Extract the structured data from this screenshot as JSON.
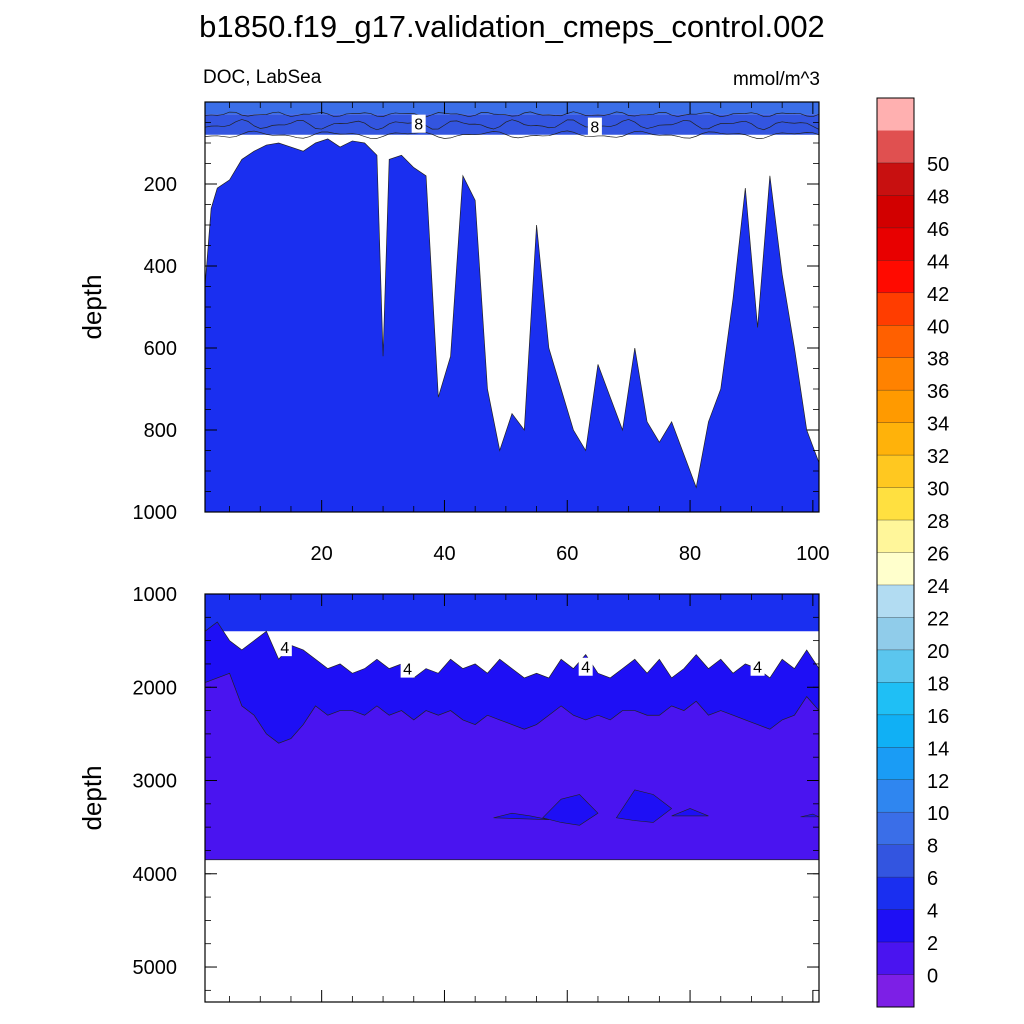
{
  "title": "b1850.f19_g17.validation_cmeps_control.002",
  "colors": {
    "levels": [
      "#7d1fe6",
      "#4a14f0",
      "#1e0ff5",
      "#1a2ff0",
      "#3355e0",
      "#3a6ee8",
      "#2f86f0",
      "#1a9cf5",
      "#10b0f5",
      "#1fbff5",
      "#5bc6ee",
      "#90ccea",
      "#b2dcf2",
      "#ffffcc",
      "#fff69a",
      "#ffe040",
      "#ffc820",
      "#ffb20a",
      "#ff9a00",
      "#ff8200",
      "#ff6000",
      "#ff3d00",
      "#ff0a00",
      "#e80000",
      "#d20000",
      "#c81010",
      "#e05050",
      "#ffb0b0"
    ]
  },
  "chart_data": [
    {
      "type": "contour",
      "panel": "top",
      "left_label": "DOC, LabSea",
      "right_label": "mmol/m^3",
      "ylabel": "depth",
      "x_ticks": [
        20,
        40,
        60,
        80,
        100
      ],
      "xlim": [
        1,
        101
      ],
      "y_ticks": [
        200,
        400,
        600,
        800,
        1000
      ],
      "ylim": [
        0,
        1000
      ],
      "y_inverted": true,
      "contour_labels": [
        {
          "text": "8",
          "x": 35.8,
          "y": 53
        },
        {
          "text": "8",
          "x": 64.5,
          "y": 60
        }
      ],
      "regions": [
        {
          "name": "surface",
          "level": "8-10",
          "x": [
            1,
            101
          ],
          "top": [
            0,
            0
          ],
          "bottom": [
            30,
            30
          ]
        },
        {
          "name": "upper",
          "level": "6-8",
          "x": [
            1,
            101
          ],
          "top": [
            30,
            30
          ],
          "bottom": [
            80,
            80
          ]
        },
        {
          "name": "interior",
          "level": "4-6",
          "x": [
            1,
            2,
            3,
            5,
            7,
            9,
            11,
            13,
            15,
            17,
            19,
            21,
            23,
            25,
            27,
            29,
            30,
            31,
            33,
            35,
            37,
            39,
            41,
            43,
            45,
            47,
            49,
            51,
            53,
            55,
            57,
            59,
            61,
            63,
            65,
            67,
            69,
            71,
            73,
            75,
            77,
            79,
            81,
            83,
            85,
            87,
            89,
            91,
            93,
            95,
            97,
            99,
            101
          ],
          "boundary": [
            450,
            260,
            210,
            190,
            140,
            120,
            105,
            100,
            110,
            120,
            100,
            90,
            110,
            95,
            100,
            130,
            620,
            140,
            130,
            160,
            180,
            720,
            620,
            180,
            240,
            700,
            850,
            760,
            800,
            300,
            600,
            700,
            800,
            850,
            640,
            720,
            800,
            600,
            780,
            830,
            780,
            860,
            940,
            780,
            700,
            480,
            210,
            550,
            180,
            420,
            600,
            800,
            880
          ]
        }
      ]
    },
    {
      "type": "contour",
      "panel": "bottom",
      "ylabel": "depth",
      "x_ticks": [
        20,
        40,
        60,
        80,
        100
      ],
      "xlim": [
        1,
        101
      ],
      "y_ticks": [
        1000,
        2000,
        3000,
        4000,
        5000
      ],
      "ylim": [
        1000,
        5375
      ],
      "y_inverted": true,
      "data_bottom_depth": 3850,
      "contour_labels": [
        {
          "text": "4",
          "x": 14,
          "y": 1570
        },
        {
          "text": "4",
          "x": 34,
          "y": 1800
        },
        {
          "text": "4",
          "x": 63,
          "y": 1780
        },
        {
          "text": "4",
          "x": 91,
          "y": 1780
        }
      ],
      "regions": [
        {
          "name": "upper",
          "level": "4-6",
          "x": [
            1,
            101
          ],
          "top": [
            1000,
            1000
          ],
          "bottom": [
            1400,
            1400
          ]
        },
        {
          "name": "mid",
          "level": "2-4",
          "x": [
            1,
            3,
            5,
            7,
            9,
            11,
            13,
            15,
            17,
            19,
            21,
            23,
            25,
            27,
            29,
            31,
            33,
            35,
            37,
            39,
            41,
            43,
            45,
            47,
            49,
            51,
            53,
            55,
            57,
            59,
            61,
            63,
            65,
            67,
            69,
            71,
            73,
            75,
            77,
            79,
            81,
            83,
            85,
            87,
            89,
            91,
            93,
            95,
            97,
            99,
            101
          ],
          "boundary": [
            1400,
            1300,
            1500,
            1600,
            1500,
            1400,
            1700,
            1550,
            1600,
            1700,
            1800,
            1750,
            1850,
            1800,
            1700,
            1800,
            1750,
            1900,
            1800,
            1850,
            1700,
            1800,
            1750,
            1850,
            1700,
            1800,
            1900,
            1850,
            1900,
            1700,
            1800,
            1650,
            1850,
            1900,
            1800,
            1700,
            1850,
            1700,
            1900,
            1800,
            1650,
            1800,
            1700,
            1850,
            1750,
            1800,
            1900,
            1700,
            1800,
            1600,
            1800
          ]
        },
        {
          "name": "deep",
          "level": "0-2",
          "x": [
            1,
            3,
            5,
            7,
            9,
            11,
            13,
            15,
            17,
            19,
            21,
            23,
            25,
            27,
            29,
            31,
            33,
            35,
            37,
            39,
            41,
            43,
            45,
            47,
            49,
            51,
            53,
            55,
            57,
            59,
            61,
            63,
            65,
            67,
            69,
            71,
            73,
            75,
            77,
            79,
            81,
            83,
            85,
            87,
            89,
            91,
            93,
            95,
            97,
            99,
            101
          ],
          "boundary": [
            1950,
            1900,
            1850,
            2200,
            2300,
            2500,
            2600,
            2550,
            2400,
            2200,
            2300,
            2250,
            2250,
            2300,
            2200,
            2300,
            2250,
            2350,
            2250,
            2300,
            2250,
            2350,
            2400,
            2300,
            2350,
            2400,
            2450,
            2400,
            2300,
            2200,
            2300,
            2350,
            2300,
            2350,
            2250,
            2250,
            2300,
            2300,
            2200,
            2250,
            2150,
            2300,
            2250,
            2300,
            2350,
            2400,
            2450,
            2350,
            2300,
            2100,
            2250
          ]
        },
        {
          "name": "deep_patches",
          "level": "2-4",
          "patches": [
            {
              "x": [
                48,
                51,
                54,
                57,
                48
              ],
              "y": [
                3400,
                3350,
                3380,
                3420,
                3400
              ]
            },
            {
              "x": [
                56,
                59,
                62,
                65,
                62,
                59,
                56
              ],
              "y": [
                3400,
                3200,
                3150,
                3350,
                3480,
                3450,
                3400
              ]
            },
            {
              "x": [
                68,
                71,
                74,
                77,
                74,
                71,
                68
              ],
              "y": [
                3400,
                3100,
                3150,
                3300,
                3450,
                3430,
                3400
              ]
            },
            {
              "x": [
                77,
                80,
                83,
                77
              ],
              "y": [
                3380,
                3300,
                3380,
                3380
              ]
            },
            {
              "x": [
                98,
                100,
                101,
                98
              ],
              "y": [
                3390,
                3360,
                3390,
                3390
              ]
            }
          ]
        }
      ]
    },
    {
      "type": "colorbar",
      "labels": [
        "50",
        "48",
        "46",
        "44",
        "42",
        "40",
        "38",
        "36",
        "34",
        "32",
        "30",
        "28",
        "26",
        "24",
        "22",
        "20",
        "18",
        "16",
        "14",
        "12",
        "10",
        "8",
        "6",
        "4",
        "2",
        "0"
      ],
      "boundaries": [
        -2,
        0,
        2,
        4,
        6,
        8,
        10,
        12,
        14,
        16,
        18,
        20,
        22,
        24,
        26,
        28,
        30,
        32,
        34,
        36,
        38,
        40,
        42,
        44,
        46,
        48,
        50,
        52
      ]
    }
  ]
}
